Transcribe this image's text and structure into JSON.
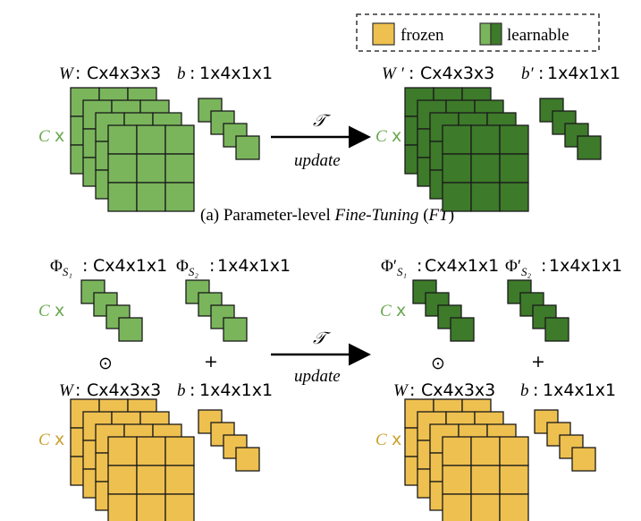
{
  "legend": {
    "frozen_label": "frozen",
    "learnable_label": "learnable"
  },
  "top": {
    "w_tag": "W",
    "w_shape": "Cx4x3x3",
    "b_tag": "b",
    "b_shape": "1x4x1x1",
    "w_prime_tag": "W ′",
    "w_prime_shape": "Cx4x3x3",
    "b_prime_tag": "b′",
    "b_prime_shape": "1x4x1x1",
    "c_label": "C",
    "x_label": "x",
    "arrow_symbol": "𝒯",
    "arrow_text": "update",
    "caption_prefix": "(a) Parameter-level ",
    "caption_ft": "Fine-Tuning",
    "caption_open": " (",
    "caption_abbr": "FT",
    "caption_close": ")"
  },
  "bottom": {
    "phi1_tag": "Φ",
    "phi1_sub": "S₁",
    "phi1_shape": "Cx4x1x1",
    "phi2_tag": "Φ",
    "phi2_sub": "S₂",
    "phi2_shape": "1x4x1x1",
    "phi1p_tag": "Φ′",
    "phi1p_sub": "S₁",
    "phi1p_shape": "Cx4x1x1",
    "phi2p_tag": "Φ′",
    "phi2p_sub": "S₂",
    "phi2p_shape": "1x4x1x1",
    "odot": "⊙",
    "plus": "+",
    "w_tag": "W",
    "w_shape": "Cx4x3x3",
    "b_tag": "b",
    "b_shape": "1x4x1x1",
    "c_label": "C",
    "x_label": "x",
    "arrow_symbol": "𝒯",
    "arrow_text": "update"
  },
  "colors": {
    "light_green": "#7ab55c",
    "dark_green": "#3d7a2a",
    "yellow": "#eec04f",
    "c_green": "#6aa84f",
    "c_yellow": "#caa12f"
  }
}
